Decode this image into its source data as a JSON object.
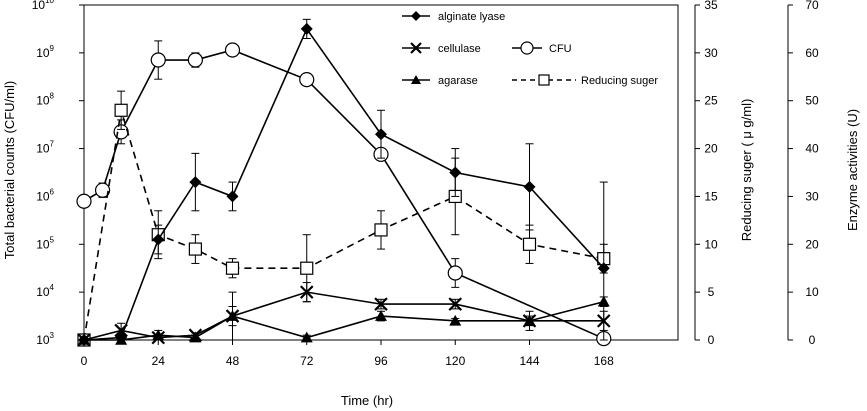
{
  "chart_data": {
    "type": "line",
    "xlabel": "Time (hr)",
    "x_ticks": [
      0,
      24,
      48,
      72,
      96,
      120,
      144,
      168
    ],
    "xlim": [
      0,
      192
    ],
    "left_axis": {
      "label": "Total bacterial counts (CFU/ml)",
      "scale": "log",
      "ylim": [
        1000,
        10000000000
      ],
      "ticks": [
        3,
        4,
        5,
        6,
        7,
        8,
        9,
        10
      ]
    },
    "mid_axis": {
      "label": "Reducing suger ( μ g/ml)",
      "ylim": [
        0,
        35
      ],
      "ticks": [
        0,
        5,
        10,
        15,
        20,
        25,
        30,
        35
      ]
    },
    "right_axis": {
      "label": "Enzyme activities (U)",
      "ylim": [
        0,
        70
      ],
      "ticks": [
        0,
        10,
        20,
        30,
        40,
        50,
        60,
        70
      ]
    },
    "legend": {
      "alginate": "alginate lyase",
      "cellulase": "cellulase",
      "cfu": "CFU",
      "agarase": "agarase",
      "sugar": "Reducing suger"
    },
    "series": [
      {
        "name": "alginate lyase",
        "axis": "right",
        "marker": "diamond",
        "line": "solid",
        "x": [
          0,
          12,
          24,
          36,
          48,
          72,
          96,
          120,
          144,
          168
        ],
        "y": [
          0,
          0.5,
          21,
          33,
          30,
          65,
          43,
          35,
          32,
          15
        ],
        "err": [
          0,
          0.5,
          3,
          6,
          3,
          2,
          5,
          5,
          9,
          18
        ]
      },
      {
        "name": "cellulase",
        "axis": "right",
        "marker": "x",
        "line": "solid",
        "x": [
          0,
          12,
          24,
          36,
          48,
          72,
          96,
          120,
          144,
          168
        ],
        "y": [
          0,
          2,
          0.5,
          1,
          5,
          10,
          7.5,
          7.5,
          4,
          4
        ],
        "err": [
          0,
          1.5,
          0.5,
          0.5,
          2,
          2,
          1,
          1,
          2,
          2
        ]
      },
      {
        "name": "agarase",
        "axis": "right",
        "marker": "triangle",
        "line": "solid",
        "x": [
          0,
          12,
          24,
          36,
          48,
          72,
          96,
          120,
          144,
          168
        ],
        "y": [
          0,
          0,
          1,
          0.5,
          5,
          0.5,
          5,
          4,
          4,
          8
        ],
        "err": [
          0,
          0.5,
          1,
          0.5,
          5,
          0.5,
          1,
          0.5,
          1,
          1
        ]
      },
      {
        "name": "CFU",
        "axis": "left",
        "marker": "circle",
        "line": "solid",
        "x": [
          0,
          6,
          12,
          24,
          36,
          48,
          72,
          96,
          120,
          168
        ],
        "y": [
          5.9,
          6.13,
          7.35,
          8.85,
          8.85,
          9.06,
          8.44,
          6.88,
          4.4,
          3.03
        ],
        "err_log": [
          0,
          0.15,
          0.25,
          0.4,
          0.15,
          0.06,
          0.05,
          0.05,
          0.3,
          0
        ]
      },
      {
        "name": "Reducing suger",
        "axis": "mid",
        "marker": "square",
        "line": "dashed",
        "x": [
          0,
          12,
          24,
          36,
          48,
          72,
          96,
          120,
          144,
          168
        ],
        "y": [
          0,
          24,
          11,
          9.5,
          7.5,
          7.5,
          11.5,
          15,
          10,
          8.5
        ],
        "err": [
          0,
          2,
          2.5,
          1.5,
          1,
          3.5,
          2,
          4,
          2,
          1.5
        ]
      }
    ]
  }
}
